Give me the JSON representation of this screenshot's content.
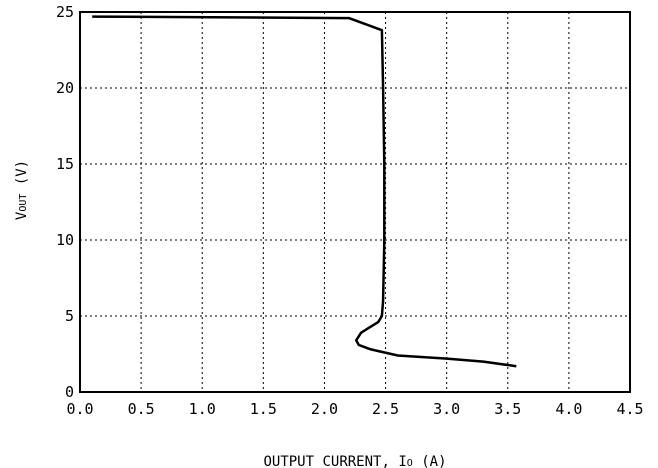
{
  "chart_data": {
    "type": "line",
    "title": "",
    "xlabel": {
      "prefix": "OUTPUT CURRENT, I",
      "subscript": "O",
      "suffix": " (A)"
    },
    "ylabel": {
      "prefix": "V",
      "subscript": "OUT",
      "suffix": " (V)"
    },
    "xlim": [
      0,
      4.5
    ],
    "ylim": [
      0,
      25
    ],
    "x_ticks": [
      0,
      0.5,
      1.0,
      1.5,
      2.0,
      2.5,
      3.0,
      3.5,
      4.0,
      4.5
    ],
    "x_tick_labels": [
      "0.0",
      "0.5",
      "1.0",
      "1.5",
      "2.0",
      "2.5",
      "3.0",
      "3.5",
      "4.0",
      "4.5"
    ],
    "y_ticks": [
      0,
      5,
      10,
      15,
      20,
      25
    ],
    "y_tick_labels": [
      "0",
      "5",
      "10",
      "15",
      "20",
      "25"
    ],
    "grid": true,
    "legend": "none",
    "line_color": "#000000",
    "series": [
      {
        "x": [
          0.1,
          2.2,
          2.47,
          2.48,
          2.49,
          2.49,
          2.48,
          2.47,
          2.44,
          2.38,
          2.3,
          2.26,
          2.28,
          2.38,
          2.6,
          3.0,
          3.3,
          3.57
        ],
        "y": [
          24.7,
          24.6,
          23.8,
          20.0,
          15.0,
          10.0,
          6.0,
          5.0,
          4.6,
          4.3,
          3.9,
          3.4,
          3.1,
          2.8,
          2.4,
          2.2,
          2.0,
          1.7
        ]
      }
    ]
  }
}
